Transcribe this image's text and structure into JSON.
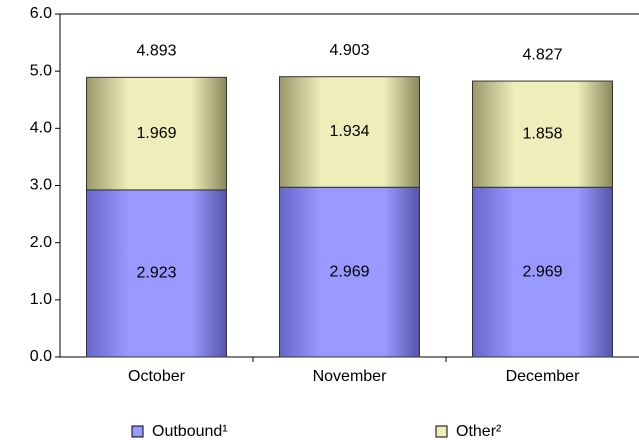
{
  "chart_data": {
    "type": "stacked-bar",
    "categories": [
      "October",
      "November",
      "December"
    ],
    "series": [
      {
        "name": "Outbound¹",
        "color": "#9999ff",
        "values": [
          2.923,
          2.969,
          2.969
        ]
      },
      {
        "name": "Other²",
        "color": "#eeeebb",
        "values": [
          1.969,
          1.934,
          1.858
        ]
      }
    ],
    "totals": [
      4.893,
      4.903,
      4.827
    ],
    "ylim": [
      0,
      6
    ],
    "yticks": [
      {
        "value": 0,
        "label": "0.0"
      },
      {
        "value": 1,
        "label": "1.0"
      },
      {
        "value": 2,
        "label": "2.0"
      },
      {
        "value": 3,
        "label": "3.0"
      },
      {
        "value": 4,
        "label": "4.0"
      },
      {
        "value": 5,
        "label": "5.0"
      },
      {
        "value": 6,
        "label": "6.0"
      }
    ],
    "legend": "bottom"
  }
}
